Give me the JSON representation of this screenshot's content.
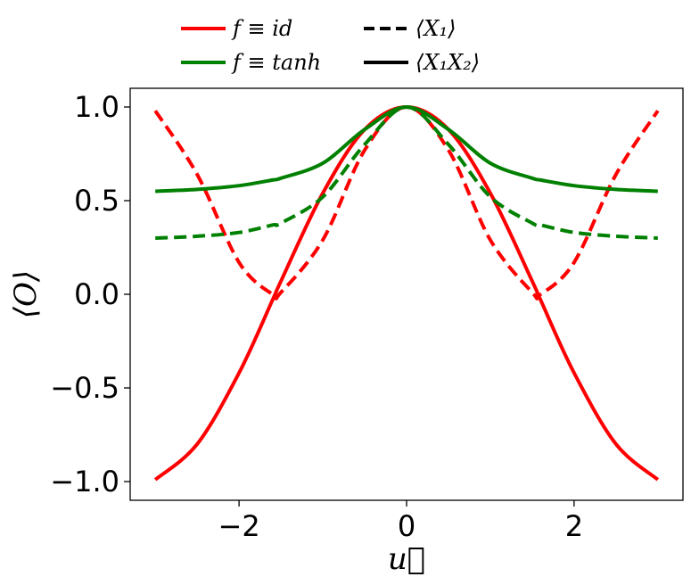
{
  "chart_data": {
    "type": "line",
    "title": "",
    "xlabel": "u⃗",
    "ylabel": "⟨O⟩",
    "xlim": [
      -3.3,
      3.3
    ],
    "ylim": [
      -1.1,
      1.1
    ],
    "x_ticks": [
      -2,
      0,
      2
    ],
    "x_tick_labels": [
      "−2",
      "0",
      "2"
    ],
    "y_ticks": [
      -1.0,
      -0.5,
      0.0,
      0.5,
      1.0
    ],
    "y_tick_labels": [
      "−1.0",
      "−0.5",
      "0.0",
      "0.5",
      "1.0"
    ],
    "grid": false,
    "legend_position": "top (above plot)",
    "legend": [
      {
        "label": "f ≡ id",
        "color": "#ff0000",
        "style": "solid"
      },
      {
        "label": "⟨X₁⟩",
        "color": "#000000",
        "style": "dashed"
      },
      {
        "label": "f ≡ tanh",
        "color": "#008000",
        "style": "solid"
      },
      {
        "label": "⟨X₁X₂⟩",
        "color": "#000000",
        "style": "solid"
      }
    ],
    "x": [
      -3.0,
      -2.5,
      -2.0,
      -1.6,
      -1.5,
      -1.0,
      -0.5,
      0.0,
      0.5,
      1.0,
      1.5,
      1.6,
      2.0,
      2.5,
      3.0
    ],
    "series": [
      {
        "name": "f ≡ id, ⟨X₁X₂⟩",
        "color": "#ff0000",
        "style": "solid",
        "values": [
          -0.99,
          -0.8,
          -0.42,
          -0.03,
          0.07,
          0.54,
          0.88,
          1.0,
          0.88,
          0.54,
          0.07,
          -0.03,
          -0.42,
          -0.8,
          -0.99
        ]
      },
      {
        "name": "f ≡ id, ⟨X₁⟩",
        "color": "#ff0000",
        "style": "dashed",
        "values": [
          0.98,
          0.64,
          0.17,
          0.0,
          0.01,
          0.29,
          0.77,
          1.0,
          0.77,
          0.29,
          0.01,
          0.0,
          0.17,
          0.64,
          0.98
        ]
      },
      {
        "name": "f ≡ tanh, ⟨X₁X₂⟩",
        "color": "#008000",
        "style": "solid",
        "values": [
          0.55,
          0.56,
          0.58,
          0.61,
          0.62,
          0.7,
          0.88,
          1.0,
          0.88,
          0.7,
          0.62,
          0.61,
          0.58,
          0.56,
          0.55
        ]
      },
      {
        "name": "f ≡ tanh, ⟨X₁⟩",
        "color": "#008000",
        "style": "dashed",
        "values": [
          0.3,
          0.31,
          0.33,
          0.37,
          0.38,
          0.52,
          0.8,
          1.0,
          0.8,
          0.52,
          0.38,
          0.37,
          0.33,
          0.31,
          0.3
        ]
      }
    ]
  }
}
